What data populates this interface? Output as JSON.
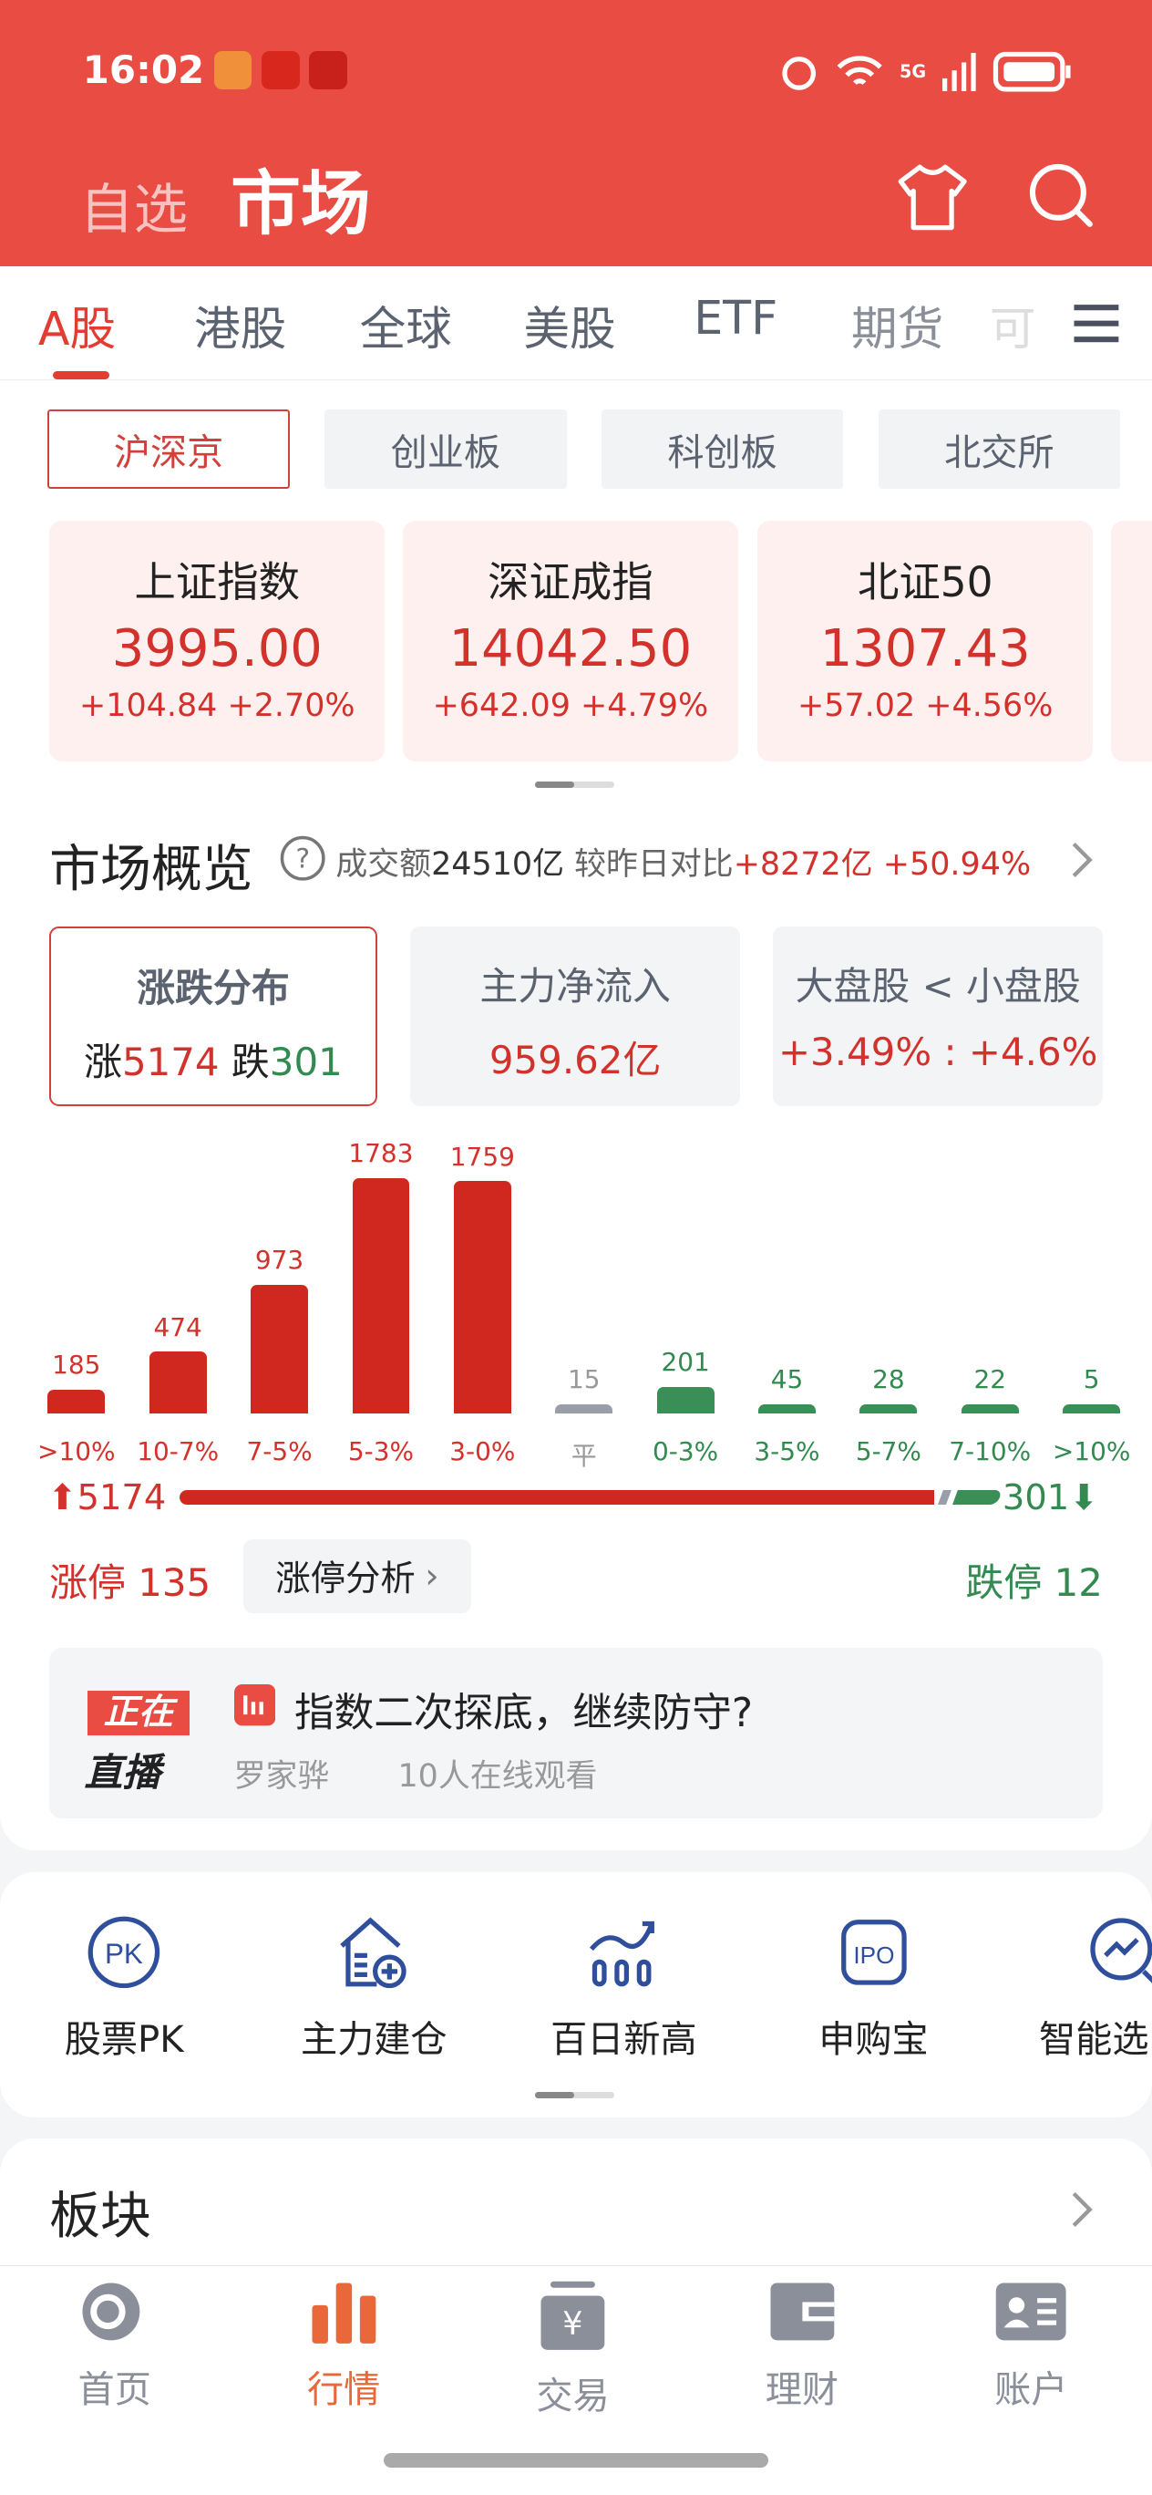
{
  "status_bar": {
    "time": "16:02",
    "network": "5G"
  },
  "header": {
    "tab_watchlist": "自选",
    "tab_market": "市场"
  },
  "market_tabs": [
    {
      "label": "A股",
      "active": true
    },
    {
      "label": "港股"
    },
    {
      "label": "全球"
    },
    {
      "label": "美股"
    },
    {
      "label": "ETF"
    },
    {
      "label": "期货"
    },
    {
      "label": "可"
    }
  ],
  "segments": [
    {
      "label": "沪深京",
      "active": true
    },
    {
      "label": "创业板"
    },
    {
      "label": "科创板"
    },
    {
      "label": "北交所"
    }
  ],
  "indices": [
    {
      "name": "上证指数",
      "value": "3995.00",
      "change": "+104.84 +2.70%"
    },
    {
      "name": "深证成指",
      "value": "14042.50",
      "change": "+642.09 +4.79%"
    },
    {
      "name": "北证50",
      "value": "1307.43",
      "change": "+57.02 +4.56%"
    }
  ],
  "overview": {
    "title": "市场概览",
    "turnover_label": "成交额",
    "turnover": "24510亿",
    "compare_label": "较昨日对比",
    "compare_value": "+8272亿 +50.94%"
  },
  "overview_cards": {
    "dist": {
      "title": "涨跌分布",
      "up_label": "涨",
      "up": "5174",
      "down_label": "跌",
      "down": "301"
    },
    "flow": {
      "title": "主力净流入",
      "value": "959.62亿"
    },
    "cap": {
      "title": "大盘股 < 小盘股",
      "value": "+3.49% : +4.6%"
    }
  },
  "chart_data": {
    "type": "bar",
    "categories": [
      ">10%",
      "10-7%",
      "7-5%",
      "5-3%",
      "3-0%",
      "平",
      "0-3%",
      "3-5%",
      "5-7%",
      "7-10%",
      ">10%"
    ],
    "values": [
      185,
      474,
      973,
      1783,
      1759,
      15,
      201,
      45,
      28,
      22,
      5
    ],
    "groups": [
      "up",
      "up",
      "up",
      "up",
      "up",
      "flat",
      "down",
      "down",
      "down",
      "down",
      "down"
    ],
    "colors": {
      "up": "#D0281F",
      "flat": "#9A9EA8",
      "down": "#3A8F57"
    }
  },
  "totals": {
    "up": "5174",
    "down": "301",
    "limit_up": "涨停 135",
    "limit_up_analysis": "涨停分析",
    "limit_down": "跌停 12"
  },
  "live": {
    "badge_top": "正在",
    "badge_bottom": "直播",
    "title": "指数二次探底，继续防守?",
    "host": "罗家骅",
    "viewers": "10人在线观看"
  },
  "tools": [
    {
      "label": "股票PK"
    },
    {
      "label": "主力建仓"
    },
    {
      "label": "百日新高"
    },
    {
      "label": "申购宝"
    },
    {
      "label": "智能选"
    }
  ],
  "sector": {
    "title": "板块"
  },
  "bottom_nav": [
    {
      "label": "首页"
    },
    {
      "label": "行情",
      "active": true
    },
    {
      "label": "交易"
    },
    {
      "label": "理财"
    },
    {
      "label": "账户"
    }
  ]
}
